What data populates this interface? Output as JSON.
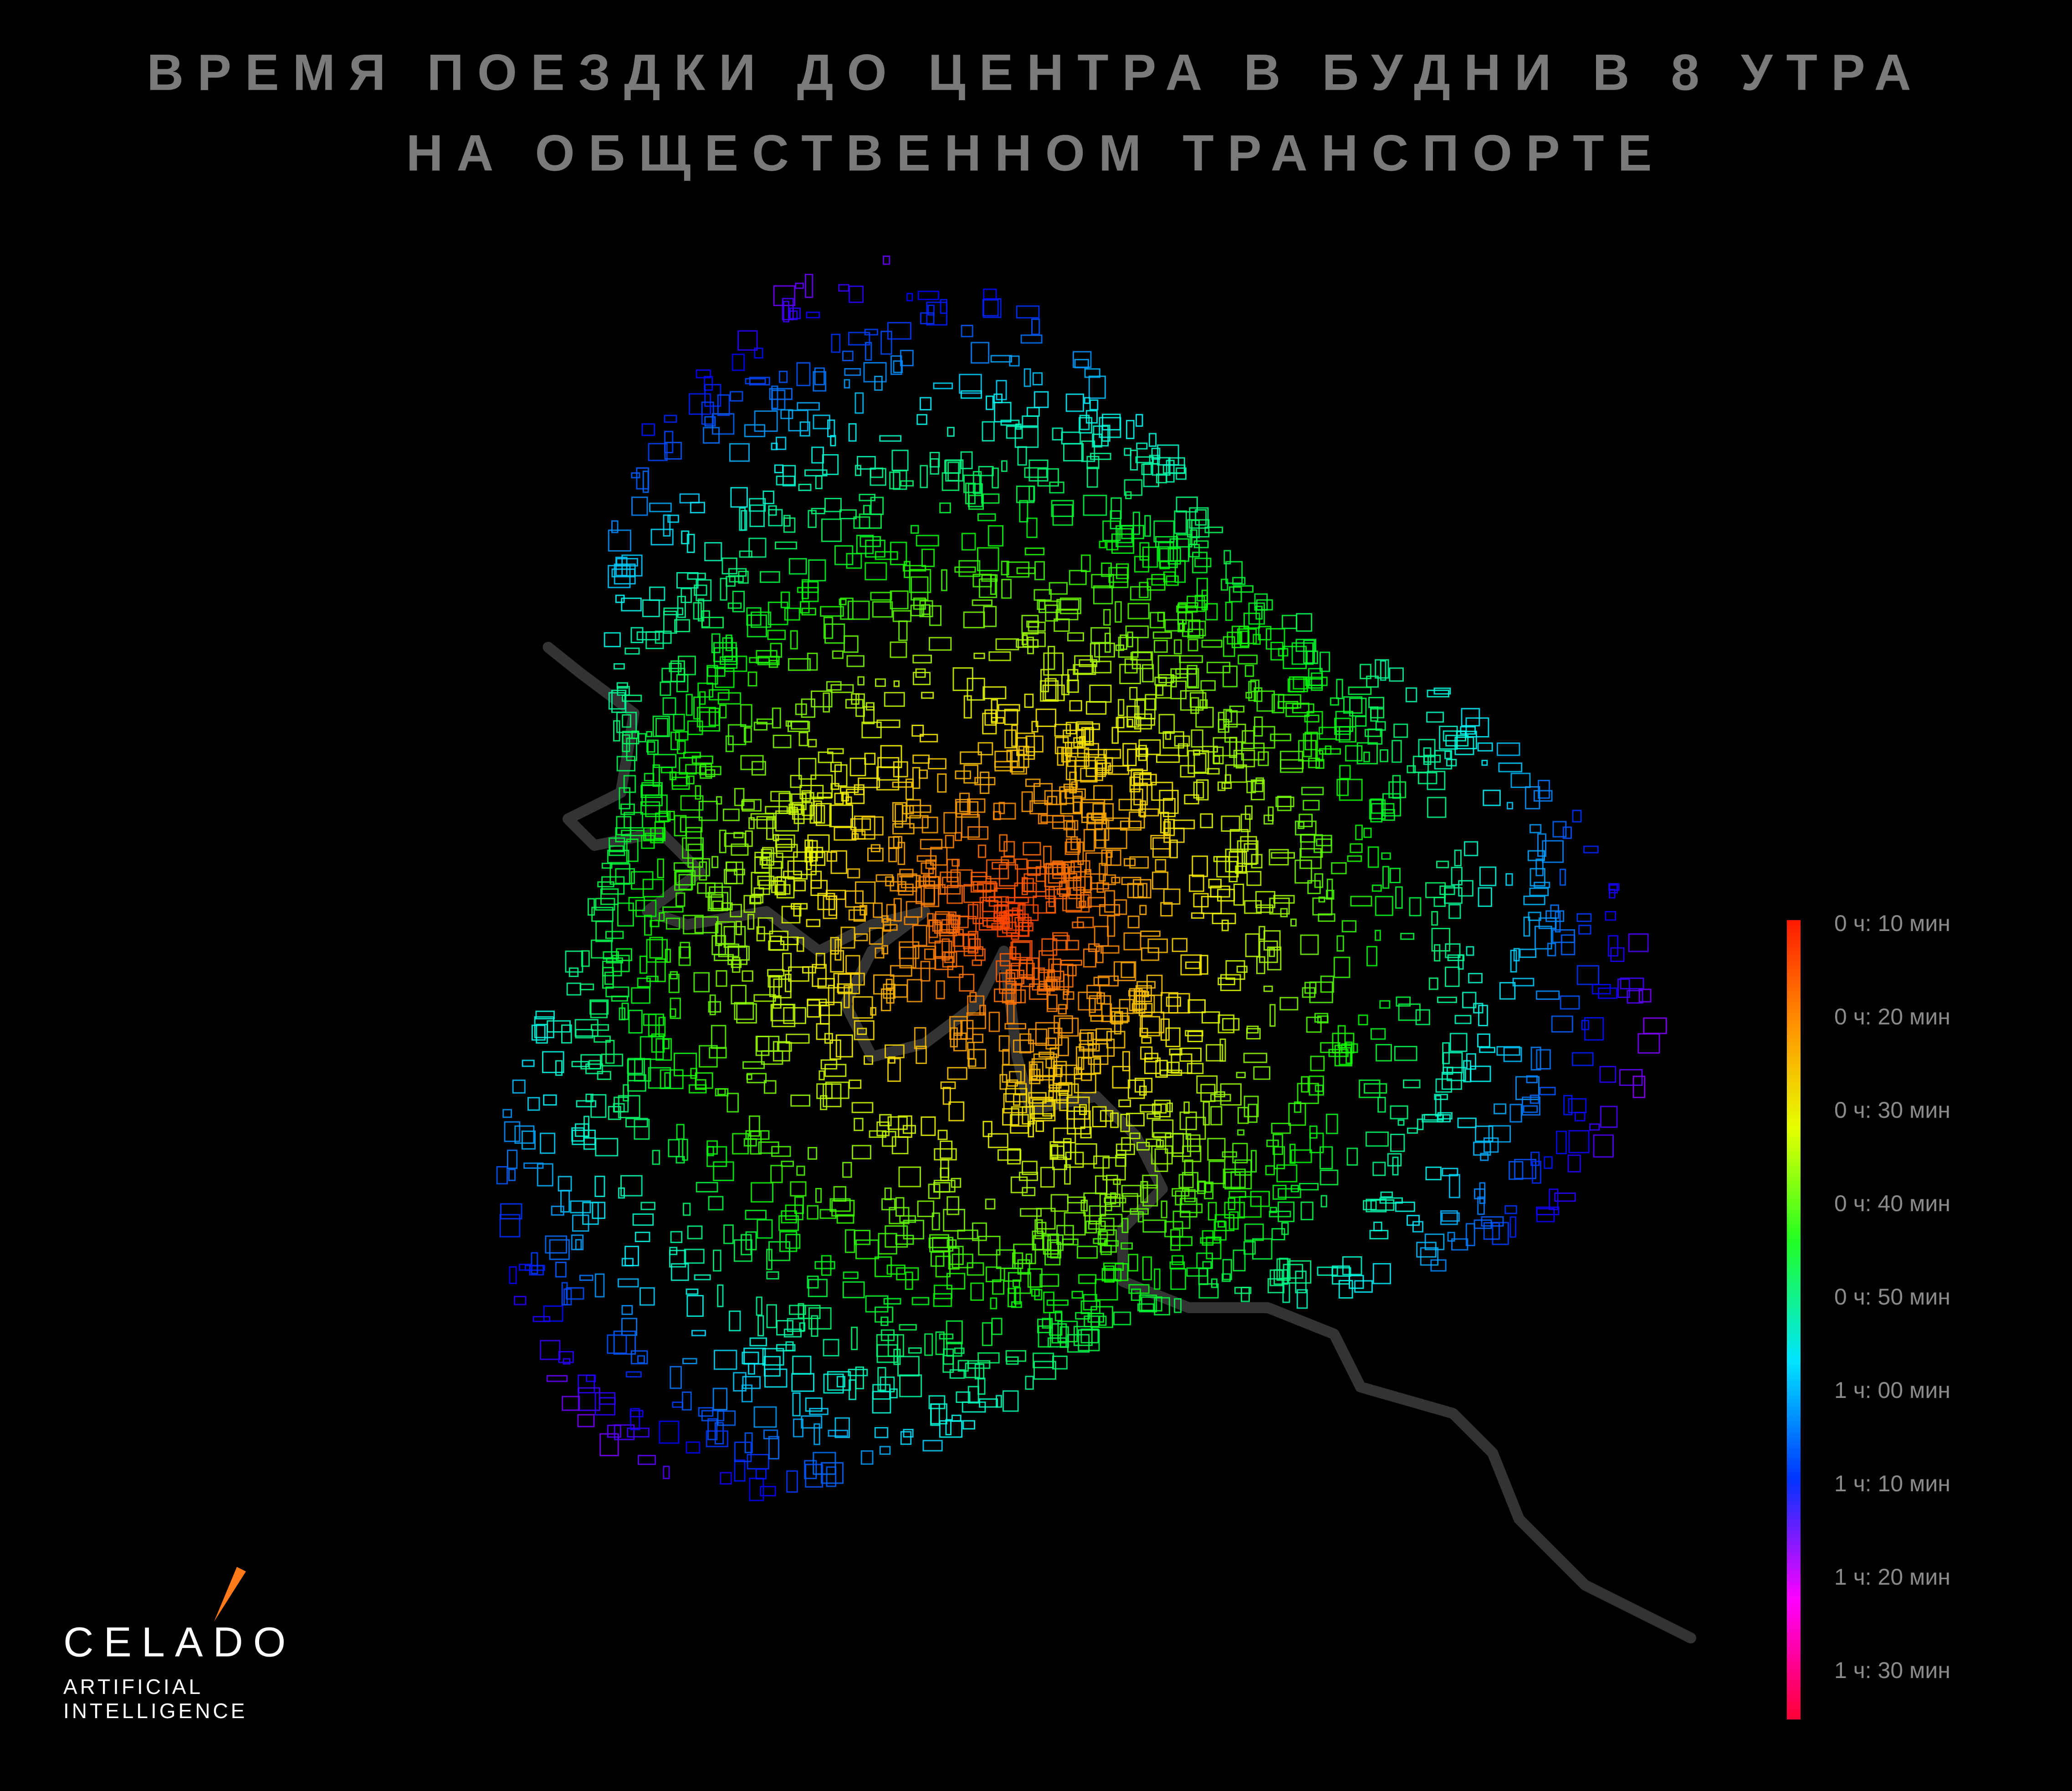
{
  "title": [
    "ВРЕМЯ ПОЕЗДКИ ДО ЦЕНТРА В БУДНИ В 8 УТРА",
    "НА ОБЩЕСТВЕННОМ ТРАНСПОРТЕ"
  ],
  "legend": {
    "labels": [
      "0 ч: 10 мин",
      "0 ч: 20 мин",
      "0 ч: 30 мин",
      "0 ч: 40 мин",
      "0 ч: 50 мин",
      "1 ч: 00 мин",
      "1 ч: 10 мин",
      "1 ч: 20 мин",
      "1 ч: 30 мин"
    ]
  },
  "logo": {
    "name": "CELADO",
    "tagline": [
      "ARTIFICIAL",
      "INTELLIGENCE"
    ]
  }
}
